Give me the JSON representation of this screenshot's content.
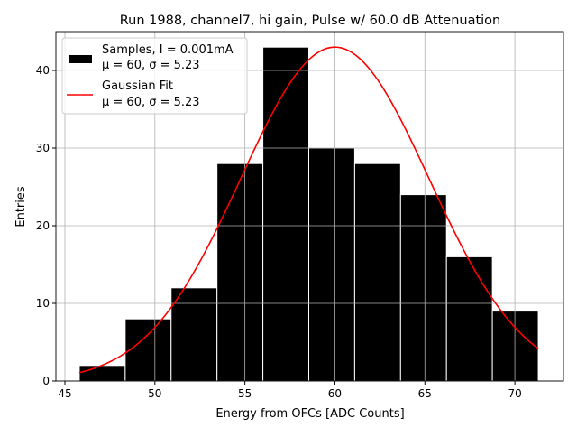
{
  "chart_data": {
    "type": "bar",
    "title": "Run 1988, channel7, hi gain, Pulse w/ 60.0 dB Attenuation",
    "xlabel": "Energy from OFCs [ADC Counts]",
    "ylabel": "Entries",
    "xlim": [
      44.5,
      72.7
    ],
    "ylim": [
      0,
      45
    ],
    "xticks": [
      45,
      50,
      55,
      60,
      65,
      70
    ],
    "yticks": [
      0,
      10,
      20,
      30,
      40
    ],
    "grid": true,
    "bin_edges": [
      45.8,
      48.35,
      50.9,
      53.45,
      56.0,
      58.55,
      61.1,
      63.65,
      66.2,
      68.75,
      71.3
    ],
    "values": [
      2,
      8,
      12,
      28,
      43,
      30,
      28,
      24,
      16,
      9
    ],
    "fit": {
      "mu": 60,
      "sigma": 5.23,
      "amplitude": 43,
      "range": [
        45.8,
        71.3
      ]
    },
    "legend": {
      "placement": "top-left",
      "entries": [
        {
          "line1": "Samples, I = 0.001mA",
          "line2": "μ = 60, σ = 5.23",
          "color": "#000000"
        },
        {
          "line1": "Gaussian Fit",
          "line2": "μ = 60, σ = 5.23",
          "color": "#ff0000"
        }
      ]
    }
  }
}
